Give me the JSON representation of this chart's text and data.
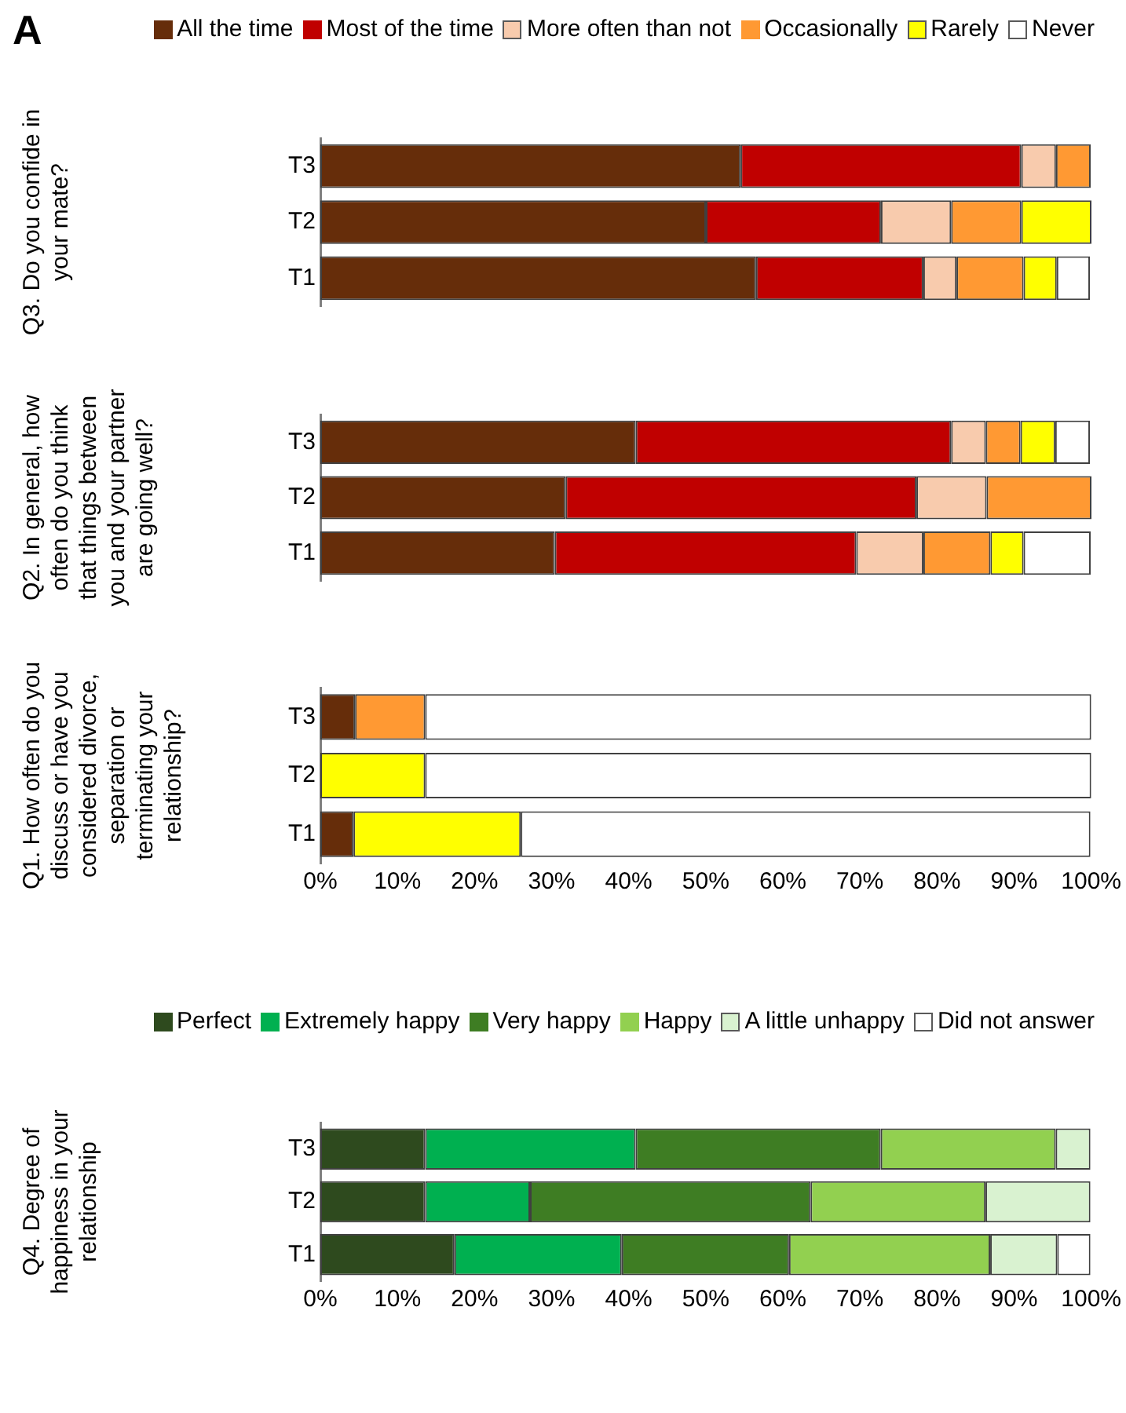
{
  "chart_data": [
    {
      "type": "bar",
      "orientation": "horizontal",
      "stacked": true,
      "legend": "top",
      "tick_labels": "y",
      "annotations": [
        "A"
      ],
      "ylabel": "Q3. Do you confide in your mate?",
      "categories": [
        "T3",
        "T2",
        "T1"
      ],
      "xlim": [
        0,
        100
      ],
      "series": [
        {
          "name": "All the time",
          "color": "#662d0a",
          "values": [
            54.5,
            50,
            56.5
          ]
        },
        {
          "name": "Most of the time",
          "color": "#c00000",
          "values": [
            36.4,
            22.7,
            21.7
          ]
        },
        {
          "name": "More often than not",
          "color": "#f8cbad",
          "values": [
            4.5,
            9.1,
            4.3
          ]
        },
        {
          "name": "Occasionally",
          "color": "#ff9933",
          "values": [
            4.5,
            9.1,
            8.7
          ]
        },
        {
          "name": "Rarely",
          "color": "#ffff00",
          "values": [
            0,
            9.1,
            4.3
          ]
        },
        {
          "name": "Never",
          "color": "#ffffff",
          "values": [
            0,
            0,
            4.3
          ]
        }
      ]
    },
    {
      "type": "bar",
      "orientation": "horizontal",
      "stacked": true,
      "tick_labels": "y",
      "ylabel": "Q2. In general, how often do you think that things between you and your partner are going well?",
      "categories": [
        "T3",
        "T2",
        "T1"
      ],
      "xlim": [
        0,
        100
      ],
      "series": [
        {
          "color": "#662d0a",
          "values": [
            40.9,
            31.8,
            30.4
          ]
        },
        {
          "color": "#c00000",
          "values": [
            40.9,
            45.5,
            39.1
          ]
        },
        {
          "color": "#f8cbad",
          "values": [
            4.5,
            9.1,
            8.7
          ]
        },
        {
          "color": "#ff9933",
          "values": [
            4.5,
            13.6,
            8.7
          ]
        },
        {
          "color": "#ffff00",
          "values": [
            4.5,
            0,
            4.3
          ]
        },
        {
          "color": "#ffffff",
          "values": [
            4.5,
            0,
            8.7
          ]
        }
      ]
    },
    {
      "type": "bar",
      "orientation": "horizontal",
      "stacked": true,
      "ylabel": "Q1. How often do you discuss or have you considered divorce, separation or terminating your relationship?",
      "categories": [
        "T3",
        "T2",
        "T1"
      ],
      "xlim": [
        0,
        100
      ],
      "xticks": [
        {
          "value": 0,
          "label": "0%"
        },
        {
          "value": 10,
          "label": "10%"
        },
        {
          "value": 20,
          "label": "20%"
        },
        {
          "value": 30,
          "label": "30%"
        },
        {
          "value": 40,
          "label": "40%"
        },
        {
          "value": 50,
          "label": "50%"
        },
        {
          "value": 60,
          "label": "60%"
        },
        {
          "value": 70,
          "label": "70%"
        },
        {
          "value": 80,
          "label": "80%"
        },
        {
          "value": 90,
          "label": "90%"
        },
        {
          "value": 100,
          "label": "100%"
        }
      ],
      "series": [
        {
          "color": "#662d0a",
          "values": [
            4.5,
            0,
            4.3
          ]
        },
        {
          "color": "#c00000",
          "values": [
            0,
            0,
            0
          ]
        },
        {
          "color": "#f8cbad",
          "values": [
            0,
            0,
            0
          ]
        },
        {
          "color": "#ff9933",
          "values": [
            9.1,
            0,
            0
          ]
        },
        {
          "color": "#ffff00",
          "values": [
            0,
            13.6,
            21.7
          ]
        },
        {
          "color": "#ffffff",
          "values": [
            86.4,
            86.4,
            73.9
          ]
        }
      ]
    },
    {
      "type": "bar",
      "orientation": "horizontal",
      "stacked": true,
      "legend": "top",
      "ylabel": "Q4. Degree of happiness in your relationship",
      "categories": [
        "T3",
        "T2",
        "T1"
      ],
      "xlim": [
        0,
        100
      ],
      "xticks": [
        {
          "value": 0,
          "label": "0%"
        },
        {
          "value": 10,
          "label": "10%"
        },
        {
          "value": 20,
          "label": "20%"
        },
        {
          "value": 30,
          "label": "30%"
        },
        {
          "value": 40,
          "label": "40%"
        },
        {
          "value": 50,
          "label": "50%"
        },
        {
          "value": 60,
          "label": "60%"
        },
        {
          "value": 70,
          "label": "70%"
        },
        {
          "value": 80,
          "label": "80%"
        },
        {
          "value": 90,
          "label": "90%"
        },
        {
          "value": 100,
          "label": "100%"
        }
      ],
      "series": [
        {
          "name": "Perfect",
          "color": "#2e4a1e",
          "values": [
            13.6,
            13.6,
            17.4
          ]
        },
        {
          "name": "Extremely happy",
          "color": "#00b050",
          "values": [
            27.3,
            13.6,
            21.7
          ]
        },
        {
          "name": "Very happy",
          "color": "#3e7d23",
          "values": [
            31.8,
            36.4,
            21.7
          ]
        },
        {
          "name": "Happy",
          "color": "#92d050",
          "values": [
            22.7,
            22.7,
            26.1
          ]
        },
        {
          "name": "A little unhappy",
          "color": "#d9f2d0",
          "values": [
            4.5,
            13.6,
            8.7
          ]
        },
        {
          "name": "Did not answer",
          "color": "#ffffff",
          "values": [
            0,
            0,
            4.3
          ]
        }
      ]
    }
  ]
}
